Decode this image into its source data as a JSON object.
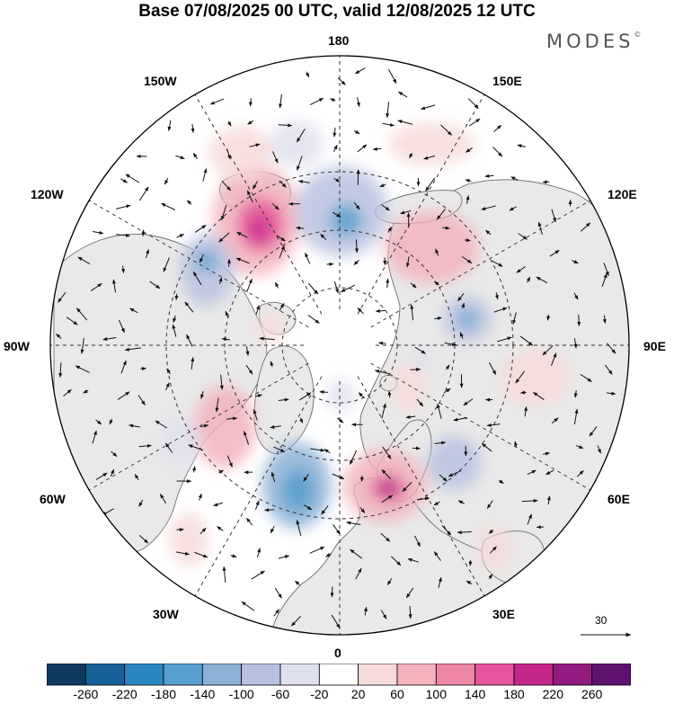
{
  "title": "Base 07/08/2025 00 UTC, valid 12/08/2025 12 UTC",
  "brand": {
    "name": "MODES",
    "mark": "©"
  },
  "map": {
    "projection": "north-polar-stereographic",
    "longitude_labels": [
      "180",
      "150E",
      "120E",
      "90E",
      "60E",
      "30E",
      "0",
      "30W",
      "60W",
      "90W",
      "120W",
      "150W"
    ],
    "wind_reference": {
      "value": "30"
    }
  },
  "colors": {
    "land": "#e9e9e9",
    "ocean": "#ffffff",
    "coast": "#6b6b6b",
    "negative_scale": [
      "#0f3a60",
      "#17619a",
      "#2a86c0",
      "#569fcf",
      "#8db0d6",
      "#b8c2df",
      "#dfe0ee"
    ],
    "positive_scale": [
      "#f7dada",
      "#f3b2bc",
      "#ee86a6",
      "#e5559b",
      "#c52689",
      "#921b80",
      "#5e1270"
    ]
  },
  "colorbar": {
    "labels": [
      "-260",
      "-220",
      "-180",
      "-140",
      "-100",
      "-60",
      "-20",
      "20",
      "60",
      "100",
      "140",
      "180",
      "220",
      "260"
    ]
  }
}
